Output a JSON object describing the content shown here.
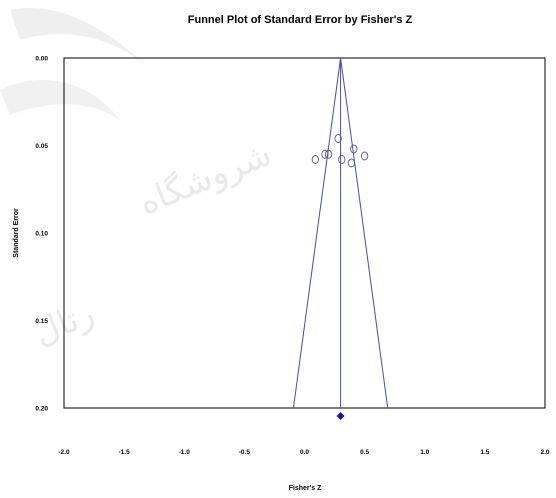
{
  "chart_data": {
    "type": "scatter",
    "title": "Funnel Plot of Standard Error by Fisher's Z",
    "xlabel": "Fisher's Z",
    "ylabel": "Standard Error",
    "xlim": [
      -2.0,
      2.0
    ],
    "ylim": [
      0.0,
      0.2
    ],
    "y_inverted": true,
    "xticks": [
      "-2.0",
      "-1.5",
      "-1.0",
      "-0.5",
      "0.0",
      "0.5",
      "1.0",
      "1.5",
      "2.0"
    ],
    "yticks": [
      "0.00",
      "0.05",
      "0.10",
      "0.15",
      "0.20"
    ],
    "points": [
      {
        "x": 0.28,
        "y": 0.046
      },
      {
        "x": 0.17,
        "y": 0.055
      },
      {
        "x": 0.2,
        "y": 0.055
      },
      {
        "x": 0.41,
        "y": 0.052
      },
      {
        "x": 0.09,
        "y": 0.058
      },
      {
        "x": 0.31,
        "y": 0.058
      },
      {
        "x": 0.39,
        "y": 0.06
      },
      {
        "x": 0.5,
        "y": 0.056
      }
    ],
    "pooled_estimate": 0.3,
    "funnel_limits": {
      "center": 0.3,
      "se_max": 0.2,
      "z": 1.96
    },
    "summary_marker": {
      "x": 0.3,
      "shape": "diamond"
    },
    "colors": {
      "lines": "#4a4ab8",
      "points": "#5a5aa0",
      "diamond": "#1a1a9a",
      "frame": "#000000"
    }
  }
}
